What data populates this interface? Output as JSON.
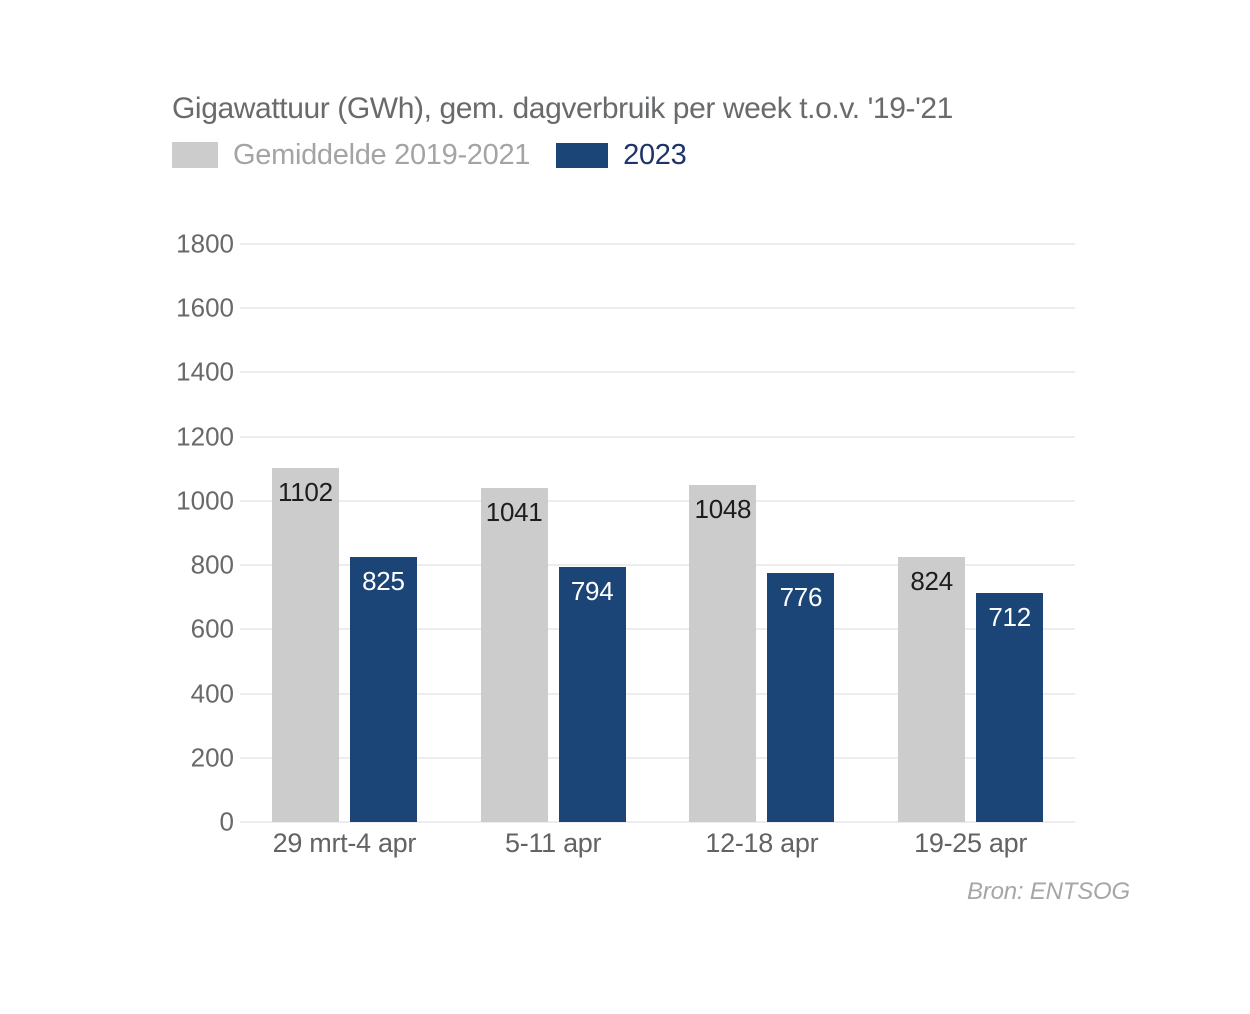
{
  "chart_data": {
    "type": "bar",
    "title": "Gigawattuur (GWh), gem. dagverbruik per week t.o.v. '19-'21",
    "source": "Bron: ENTSOG",
    "categories": [
      "29 mrt-4 apr",
      "5-11 apr",
      "12-18 apr",
      "19-25 apr"
    ],
    "series": [
      {
        "key": "gemiddelde-2019-2021",
        "name": "Gemiddelde 2019-2021",
        "color": "#cccccc",
        "label_color": "#1d1d1b",
        "values": [
          1102,
          1041,
          1048,
          824
        ]
      },
      {
        "key": "2023",
        "name": "2023",
        "color": "#1b4576",
        "label_color": "#ffffff",
        "values": [
          825,
          794,
          776,
          712
        ]
      }
    ],
    "xlabel": "",
    "ylabel": "",
    "ylim": [
      0,
      1800
    ],
    "ytick_step": 200,
    "grid": true,
    "legend_position": "top",
    "data_labels": "inside-top"
  },
  "colors": {
    "background": "#ffffff",
    "title_text": "#686a6c",
    "legend_gray_text": "#a4a4a6",
    "legend_blue_text": "#1c3468",
    "axis_text": "#69696b",
    "x_axis_text": "#636365",
    "gridline": "#ededed",
    "source_text": "#a6a6a8"
  }
}
